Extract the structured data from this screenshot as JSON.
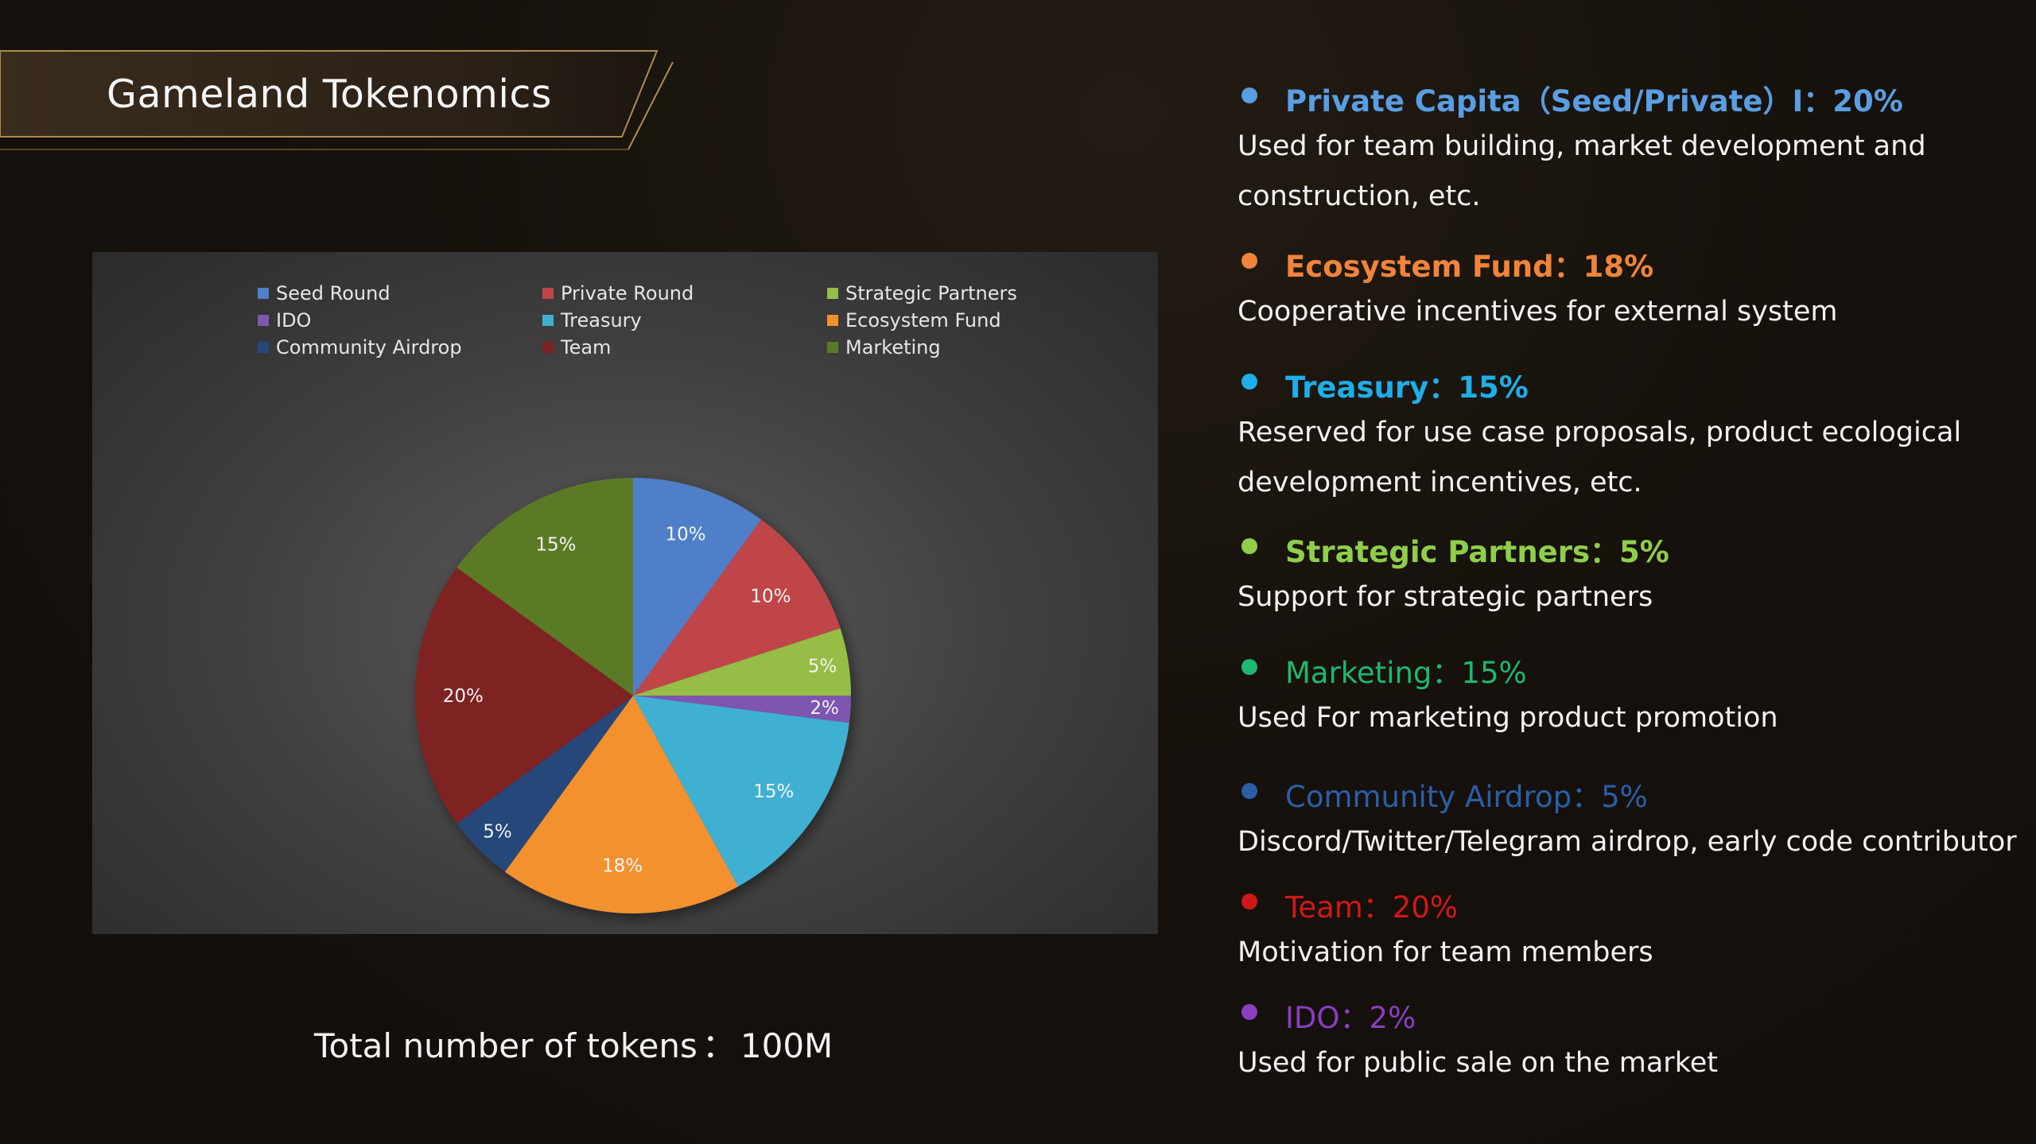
{
  "title": "Gameland Tokenomics",
  "total": {
    "label": "Total number of tokens",
    "separator": "：",
    "value": "100M"
  },
  "chart_data": {
    "type": "pie",
    "title": "",
    "legend_position": "top",
    "slices": [
      {
        "name": "Seed Round",
        "value": 10,
        "label": "10%",
        "color": "#4f7fc8"
      },
      {
        "name": "Private Round",
        "value": 10,
        "label": "10%",
        "color": "#c0454a"
      },
      {
        "name": "Strategic Partners",
        "value": 5,
        "label": "5%",
        "color": "#96bd45"
      },
      {
        "name": "IDO",
        "value": 2,
        "label": "2%",
        "color": "#7e57b0"
      },
      {
        "name": "Treasury",
        "value": 15,
        "label": "15%",
        "color": "#3fb0d2"
      },
      {
        "name": "Ecosystem Fund",
        "value": 18,
        "label": "18%",
        "color": "#f3912f"
      },
      {
        "name": "Community Airdrop",
        "value": 5,
        "label": "5%",
        "color": "#27477a"
      },
      {
        "name": "Team",
        "value": 20,
        "label": "20%",
        "color": "#7f2020"
      },
      {
        "name": "Marketing",
        "value": 15,
        "label": "15%",
        "color": "#5a7a28"
      }
    ],
    "legend_order": [
      "Seed Round",
      "Private Round",
      "Strategic Partners",
      "IDO",
      "Treasury",
      "Ecosystem Fund",
      "Community Airdrop",
      "Team",
      "Marketing"
    ]
  },
  "descriptions": [
    {
      "title": "Private Capita（Seed/Private）I：20%",
      "color": "#5a9ee2",
      "text": "Used for team building, market development and construction, etc."
    },
    {
      "title": "Ecosystem Fund：18%",
      "color": "#f0843a",
      "text": "Cooperative incentives for external system"
    },
    {
      "title": "Treasury：15%",
      "color": "#1eaee8",
      "text": "Reserved for use case proposals, product ecological development incentives, etc."
    },
    {
      "title": "Strategic Partners：5%",
      "color": "#8fce4a",
      "text": "Support for strategic partners"
    },
    {
      "title": "Marketing：15%",
      "color": "#1db870",
      "text": "Used For marketing product promotion"
    },
    {
      "title": "Community Airdrop：5%",
      "color": "#2a5fa8",
      "text": "Discord/Twitter/Telegram airdrop, early code contributor"
    },
    {
      "title": "Team：20%",
      "color": "#d01818",
      "text": "Motivation for team members"
    },
    {
      "title": "IDO：2%",
      "color": "#8a3ec0",
      "text": "Used for public sale on the market"
    }
  ]
}
